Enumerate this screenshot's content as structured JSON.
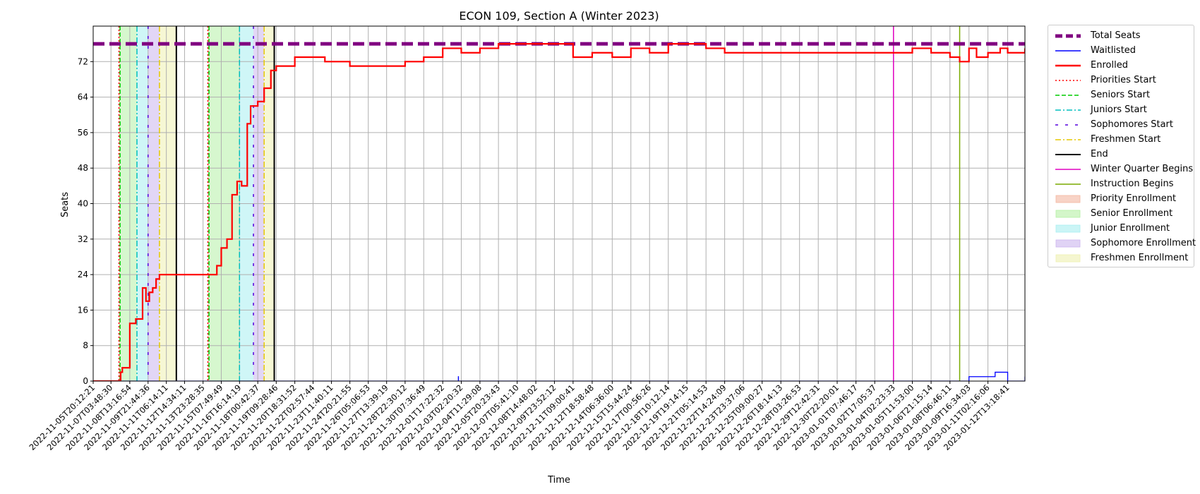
{
  "chart_data": {
    "type": "line",
    "title": "ECON 109, Section A (Winter 2023)",
    "xlabel": "Time",
    "ylabel": "Seats",
    "ylim": [
      0,
      80
    ],
    "xlim": [
      "2022-11-05T20:12:21",
      "2023-01-13T20:00:00"
    ],
    "yticks": [
      0,
      8,
      16,
      24,
      32,
      40,
      48,
      56,
      64,
      72
    ],
    "grid": true,
    "legend_position": "outside-right",
    "xtick_labels": [
      "2022-11-05T20:12:21",
      "2022-11-07T03:48:30",
      "2022-11-08T13:16:54",
      "2022-11-09T21:44:36",
      "2022-11-11T06:14:11",
      "2022-11-12T14:34:11",
      "2022-11-13T23:28:35",
      "2022-11-15T07:49:49",
      "2022-11-16T16:14:19",
      "2022-11-18T00:42:37",
      "2022-11-19T09:28:46",
      "2022-11-20T18:31:52",
      "2022-11-22T02:57:44",
      "2022-11-23T11:40:11",
      "2022-11-24T20:21:55",
      "2022-11-26T05:06:53",
      "2022-11-27T13:39:19",
      "2022-11-28T22:30:12",
      "2022-11-30T07:36:49",
      "2022-12-01T17:22:32",
      "2022-12-03T02:20:32",
      "2022-12-04T11:29:08",
      "2022-12-05T20:23:43",
      "2022-12-07T05:41:10",
      "2022-12-08T14:48:02",
      "2022-12-09T23:52:12",
      "2022-12-11T09:00:41",
      "2022-12-12T18:58:48",
      "2022-12-14T06:36:00",
      "2022-12-15T15:44:24",
      "2022-12-17T00:56:26",
      "2022-12-18T10:12:14",
      "2022-12-19T19:14:15",
      "2022-12-21T05:14:53",
      "2022-12-22T14:24:09",
      "2022-12-23T23:37:06",
      "2022-12-25T09:00:27",
      "2022-12-26T18:14:13",
      "2022-12-28T03:26:53",
      "2022-12-29T12:42:31",
      "2022-12-30T22:20:01",
      "2023-01-01T07:46:17",
      "2023-01-02T17:05:37",
      "2023-01-04T02:23:33",
      "2023-01-05T11:53:00",
      "2023-01-06T21:15:14",
      "2023-01-08T06:46:11",
      "2023-01-09T16:34:03",
      "2023-01-11T02:16:06",
      "2023-01-12T13:18:41"
    ],
    "total_seats": 76,
    "series": [
      {
        "name": "Total Seats",
        "color": "#800080",
        "style": "dashed-thick",
        "x": [
          "2022-11-05T20:12:21",
          "2023-01-13T20:00:00"
        ],
        "values": [
          76,
          76
        ]
      },
      {
        "name": "Waitlisted",
        "color": "#0000ff",
        "style": "solid-thin",
        "x": [
          "2022-11-05T20:12:21",
          "2022-12-02T21:00:00",
          "2022-12-02T21:10:00",
          "2022-12-02T21:20:00",
          "2023-01-09T16:34:03",
          "2023-01-10T22:00:00",
          "2023-01-11T15:00:00",
          "2023-01-12T13:18:41",
          "2023-01-13T20:00:00"
        ],
        "values": [
          0,
          0,
          1,
          0,
          1,
          1,
          2,
          0,
          1
        ]
      },
      {
        "name": "Enrolled",
        "color": "#ff0000",
        "style": "solid-thick",
        "x": [
          "2022-11-05T20:12:21",
          "2022-11-07T21:00:00",
          "2022-11-08T00:00:00",
          "2022-11-08T06:00:00",
          "2022-11-08T13:16:54",
          "2022-11-09T00:00:00",
          "2022-11-09T12:00:00",
          "2022-11-09T18:00:00",
          "2022-11-10T00:00:00",
          "2022-11-10T06:00:00",
          "2022-11-10T12:00:00",
          "2022-11-10T18:00:00",
          "2022-11-11T06:14:11",
          "2022-11-11T18:00:00",
          "2022-11-12T14:34:11",
          "2022-11-14T12:00:00",
          "2022-11-15T00:00:00",
          "2022-11-15T07:49:49",
          "2022-11-15T18:00:00",
          "2022-11-16T03:00:00",
          "2022-11-16T12:00:00",
          "2022-11-16T20:00:00",
          "2022-11-17T06:00:00",
          "2022-11-17T12:00:00",
          "2022-11-18T00:42:37",
          "2022-11-18T12:00:00",
          "2022-11-19T00:00:00",
          "2022-11-19T09:28:46",
          "2022-11-20T00:00:00",
          "2022-11-20T18:31:52",
          "2022-11-23T00:00:00",
          "2022-11-24T20:21:55",
          "2022-11-28T00:00:00",
          "2022-11-28T22:30:12",
          "2022-11-30T07:36:49",
          "2022-12-01T17:22:32",
          "2022-12-03T02:20:32",
          "2022-12-04T11:29:08",
          "2022-12-05T20:23:43",
          "2022-12-07T05:41:10",
          "2022-12-09T23:52:12",
          "2022-12-11T09:00:41",
          "2022-12-12T18:58:48",
          "2022-12-13T12:00:00",
          "2022-12-14T06:36:00",
          "2022-12-15T15:44:24",
          "2022-12-17T00:56:26",
          "2022-12-18T10:12:14",
          "2022-12-19T19:14:15",
          "2022-12-21T05:14:53",
          "2022-12-22T14:24:09",
          "2022-12-30T22:20:01",
          "2023-01-01T07:46:17",
          "2023-01-05T11:53:00",
          "2023-01-06T21:15:14",
          "2023-01-08T06:46:11",
          "2023-01-09T00:00:00",
          "2023-01-09T16:34:03",
          "2023-01-10T06:00:00",
          "2023-01-11T02:16:06",
          "2023-01-12T00:00:00",
          "2023-01-12T13:18:41",
          "2023-01-13T20:00:00"
        ],
        "values": [
          0,
          2,
          3,
          3,
          13,
          14,
          21,
          18,
          20,
          21,
          23,
          24,
          24,
          24,
          24,
          24,
          26,
          30,
          32,
          42,
          45,
          44,
          58,
          62,
          63,
          66,
          70,
          71,
          71,
          73,
          72,
          71,
          71,
          72,
          73,
          75,
          74,
          75,
          76,
          76,
          76,
          73,
          74,
          74,
          73,
          75,
          74,
          76,
          76,
          75,
          74,
          74,
          74,
          75,
          74,
          73,
          72,
          75,
          73,
          74,
          75,
          74,
          75
        ]
      }
    ],
    "vertical_lines": [
      {
        "name": "Priorities Start",
        "color": "#ff0000",
        "style": "dotted",
        "x": [
          "2022-11-07T18:00:00",
          "2022-11-14T08:00:00"
        ]
      },
      {
        "name": "Seniors Start",
        "color": "#00cc00",
        "style": "dashed",
        "x": [
          "2022-11-07T20:00:00",
          "2022-11-14T10:00:00"
        ]
      },
      {
        "name": "Juniors Start",
        "color": "#00bfbf",
        "style": "dashdot",
        "x": [
          "2022-11-09T02:00:00",
          "2022-11-16T16:14:19"
        ]
      },
      {
        "name": "Sophomores Start",
        "color": "#5500dd",
        "style": "loosedash",
        "x": [
          "2022-11-09T21:44:36",
          "2022-11-17T17:00:00"
        ]
      },
      {
        "name": "Freshmen Start",
        "color": "#e6c800",
        "style": "dashdot",
        "x": [
          "2022-11-10T18:00:00",
          "2022-11-18T12:00:00"
        ]
      },
      {
        "name": "End",
        "color": "#000000",
        "style": "solid",
        "x": [
          "2022-11-12T00:00:00",
          "2022-11-19T06:00:00"
        ]
      },
      {
        "name": "Winter Quarter Begins",
        "color": "#e000c0",
        "style": "solid",
        "x": [
          "2023-01-04T02:23:33"
        ]
      },
      {
        "name": "Instruction Begins",
        "color": "#7aaa00",
        "style": "solid",
        "x": [
          "2023-01-09T00:00:00"
        ]
      }
    ],
    "shaded_regions": [
      {
        "name": "Priority Enrollment",
        "color": "#f4b6a0",
        "spans": [
          [
            "2022-11-07T18:00:00",
            "2022-11-07T20:00:00"
          ],
          [
            "2022-11-14T08:00:00",
            "2022-11-14T10:00:00"
          ]
        ]
      },
      {
        "name": "Senior Enrollment",
        "color": "#b5f0a5",
        "spans": [
          [
            "2022-11-07T20:00:00",
            "2022-11-09T02:00:00"
          ],
          [
            "2022-11-14T10:00:00",
            "2022-11-16T16:14:19"
          ]
        ]
      },
      {
        "name": "Junior Enrollment",
        "color": "#a8eef0",
        "spans": [
          [
            "2022-11-09T02:00:00",
            "2022-11-09T21:44:36"
          ],
          [
            "2022-11-16T16:14:19",
            "2022-11-17T17:00:00"
          ]
        ]
      },
      {
        "name": "Sophomore Enrollment",
        "color": "#cbb5ee",
        "spans": [
          [
            "2022-11-09T21:44:36",
            "2022-11-10T18:00:00"
          ],
          [
            "2022-11-17T17:00:00",
            "2022-11-18T12:00:00"
          ]
        ]
      },
      {
        "name": "Freshmen Enrollment",
        "color": "#eef0b0",
        "spans": [
          [
            "2022-11-10T18:00:00",
            "2022-11-12T00:00:00"
          ],
          [
            "2022-11-18T12:00:00",
            "2022-11-19T06:00:00"
          ]
        ]
      }
    ]
  },
  "legend": [
    {
      "label": "Total Seats",
      "kind": "line",
      "color": "#800080",
      "dash": "10,5",
      "width": 5
    },
    {
      "label": "Waitlisted",
      "kind": "line",
      "color": "#0000ff",
      "dash": "",
      "width": 1.5
    },
    {
      "label": "Enrolled",
      "kind": "line",
      "color": "#ff0000",
      "dash": "",
      "width": 2.5
    },
    {
      "label": "Priorities Start",
      "kind": "line",
      "color": "#ff0000",
      "dash": "2,3",
      "width": 1.5
    },
    {
      "label": "Seniors Start",
      "kind": "line",
      "color": "#00cc00",
      "dash": "6,3",
      "width": 1.5
    },
    {
      "label": "Juniors Start",
      "kind": "line",
      "color": "#00bfbf",
      "dash": "8,3,2,3",
      "width": 1.5
    },
    {
      "label": "Sophomores Start",
      "kind": "line",
      "color": "#5500dd",
      "dash": "4,10",
      "width": 1.5
    },
    {
      "label": "Freshmen Start",
      "kind": "line",
      "color": "#e6c800",
      "dash": "8,3,2,3",
      "width": 1.5
    },
    {
      "label": "End",
      "kind": "line",
      "color": "#000000",
      "dash": "",
      "width": 2
    },
    {
      "label": "Winter Quarter Begins",
      "kind": "line",
      "color": "#e000c0",
      "dash": "",
      "width": 1.5
    },
    {
      "label": "Instruction Begins",
      "kind": "line",
      "color": "#7aaa00",
      "dash": "",
      "width": 1.5
    },
    {
      "label": "Priority Enrollment",
      "kind": "patch",
      "color": "#f4b6a0"
    },
    {
      "label": "Senior Enrollment",
      "kind": "patch",
      "color": "#b5f0a5"
    },
    {
      "label": "Junior Enrollment",
      "kind": "patch",
      "color": "#a8eef0"
    },
    {
      "label": "Sophomore Enrollment",
      "kind": "patch",
      "color": "#cbb5ee"
    },
    {
      "label": "Freshmen Enrollment",
      "kind": "patch",
      "color": "#eef0b0"
    }
  ]
}
